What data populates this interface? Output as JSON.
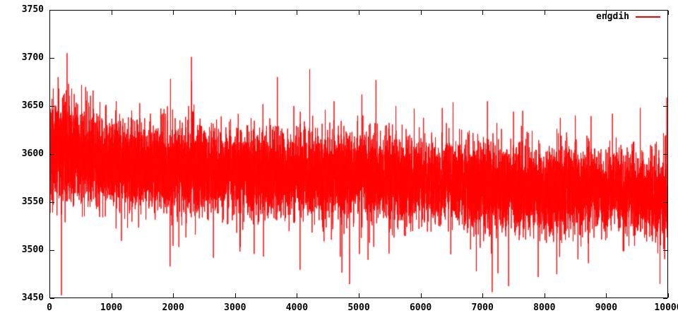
{
  "chart": {
    "background_color": "#ffffff",
    "border_color": "#000000",
    "legend": {
      "label": "engdih",
      "position": "top-right"
    }
  },
  "chart_data": {
    "type": "line",
    "title": "",
    "xlabel": "",
    "ylabel": "",
    "grid": false,
    "legend_position": "top-right-inside",
    "xlim": [
      0,
      10000
    ],
    "ylim": [
      3450,
      3750
    ],
    "x_ticks": [
      0,
      1000,
      2000,
      3000,
      4000,
      5000,
      6000,
      7000,
      8000,
      9000,
      10000
    ],
    "x_tick_labels": [
      "0",
      "1000",
      "2000",
      "3000",
      "4000",
      "5000",
      "6000",
      "7000",
      "8000",
      "9000",
      "10000"
    ],
    "y_ticks": [
      3450,
      3500,
      3550,
      3600,
      3650,
      3700,
      3750
    ],
    "y_tick_labels": [
      "3450",
      "3500",
      "3550",
      "3600",
      "3650",
      "3700",
      "3750"
    ],
    "series": [
      {
        "name": "engdih",
        "color": "#ff0000",
        "n_points": 10000,
        "noise_seed": 1337,
        "summary": "dense noisy signal; running mean declines from ~3605 at x=0 to ~3558 at x=10000; typical scatter sd ~21; absolute max ~3705 near x=285; absolute min ~3472 near x=7900",
        "mean_sd_profile": [
          [
            0,
            3602,
            26
          ],
          [
            250,
            3612,
            28
          ],
          [
            500,
            3603,
            25
          ],
          [
            1000,
            3593,
            23
          ],
          [
            1500,
            3588,
            22
          ],
          [
            2000,
            3584,
            23
          ],
          [
            3000,
            3581,
            22
          ],
          [
            4000,
            3579,
            22
          ],
          [
            5000,
            3576,
            23
          ],
          [
            6000,
            3573,
            21
          ],
          [
            7000,
            3566,
            23
          ],
          [
            8000,
            3561,
            23
          ],
          [
            9000,
            3563,
            20
          ],
          [
            10000,
            3557,
            20
          ]
        ],
        "extreme_points": [
          [
            140,
            3680
          ],
          [
            285,
            3705
          ],
          [
            360,
            3668
          ],
          [
            520,
            3672
          ],
          [
            1080,
            3655
          ],
          [
            1950,
            3483
          ],
          [
            2250,
            3650
          ],
          [
            2650,
            3492
          ],
          [
            3450,
            3652
          ],
          [
            3950,
            3650
          ],
          [
            4600,
            3655
          ],
          [
            5050,
            3662
          ],
          [
            5150,
            3490
          ],
          [
            5600,
            3650
          ],
          [
            6350,
            3648
          ],
          [
            6900,
            3478
          ],
          [
            7080,
            3655
          ],
          [
            7250,
            3476
          ],
          [
            7650,
            3645
          ],
          [
            7900,
            3472
          ],
          [
            8200,
            3475
          ],
          [
            8500,
            3640
          ],
          [
            9100,
            3642
          ],
          [
            9550,
            3648
          ],
          [
            9880,
            3505
          ],
          [
            10000,
            3510
          ]
        ]
      }
    ]
  }
}
